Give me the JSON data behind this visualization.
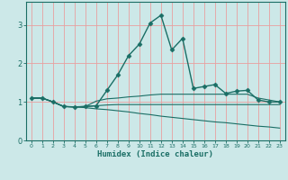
{
  "xlabel": "Humidex (Indice chaleur)",
  "xlim": [
    -0.5,
    23.5
  ],
  "ylim": [
    0,
    3.6
  ],
  "yticks": [
    0,
    1,
    2,
    3
  ],
  "xticks": [
    0,
    1,
    2,
    3,
    4,
    5,
    6,
    7,
    8,
    9,
    10,
    11,
    12,
    13,
    14,
    15,
    16,
    17,
    18,
    19,
    20,
    21,
    22,
    23
  ],
  "bg_color": "#cce8e8",
  "line_color": "#1a6e65",
  "grid_color": "#e8a0a0",
  "lines": [
    {
      "x": [
        0,
        1,
        2,
        3,
        4,
        5,
        6,
        7,
        8,
        9,
        10,
        11,
        12,
        13,
        14,
        15,
        16,
        17,
        18,
        19,
        20,
        21,
        22,
        23
      ],
      "y": [
        1.1,
        1.1,
        1.0,
        0.88,
        0.87,
        0.88,
        0.9,
        1.3,
        1.7,
        2.2,
        2.5,
        3.05,
        3.25,
        2.35,
        2.65,
        1.35,
        1.4,
        1.45,
        1.22,
        1.28,
        1.3,
        1.05,
        1.0,
        1.0
      ],
      "marker": "D",
      "markersize": 2.5,
      "lw": 1.0
    },
    {
      "x": [
        0,
        1,
        2,
        3,
        4,
        5,
        6,
        7,
        8,
        9,
        10,
        11,
        12,
        13,
        14,
        15,
        16,
        17,
        18,
        19,
        20,
        21,
        22,
        23
      ],
      "y": [
        1.1,
        1.1,
        1.0,
        0.88,
        0.87,
        0.88,
        1.02,
        1.08,
        1.1,
        1.13,
        1.15,
        1.18,
        1.2,
        1.2,
        1.2,
        1.2,
        1.2,
        1.2,
        1.2,
        1.2,
        1.2,
        1.1,
        1.05,
        1.0
      ],
      "marker": null,
      "lw": 0.8
    },
    {
      "x": [
        0,
        1,
        2,
        3,
        4,
        5,
        6,
        7,
        8,
        9,
        10,
        11,
        12,
        13,
        14,
        15,
        16,
        17,
        18,
        19,
        20,
        21,
        22,
        23
      ],
      "y": [
        1.1,
        1.1,
        1.0,
        0.88,
        0.87,
        0.88,
        0.9,
        0.92,
        0.93,
        0.93,
        0.93,
        0.93,
        0.93,
        0.93,
        0.93,
        0.93,
        0.93,
        0.93,
        0.93,
        0.93,
        0.93,
        0.93,
        0.93,
        0.93
      ],
      "marker": null,
      "lw": 0.8
    },
    {
      "x": [
        0,
        1,
        2,
        3,
        4,
        5,
        6,
        7,
        8,
        9,
        10,
        11,
        12,
        13,
        14,
        15,
        16,
        17,
        18,
        19,
        20,
        21,
        22,
        23
      ],
      "y": [
        1.1,
        1.1,
        1.0,
        0.88,
        0.87,
        0.85,
        0.82,
        0.8,
        0.77,
        0.74,
        0.7,
        0.67,
        0.63,
        0.6,
        0.57,
        0.54,
        0.51,
        0.48,
        0.46,
        0.43,
        0.4,
        0.37,
        0.35,
        0.32
      ],
      "marker": null,
      "lw": 0.8
    }
  ]
}
